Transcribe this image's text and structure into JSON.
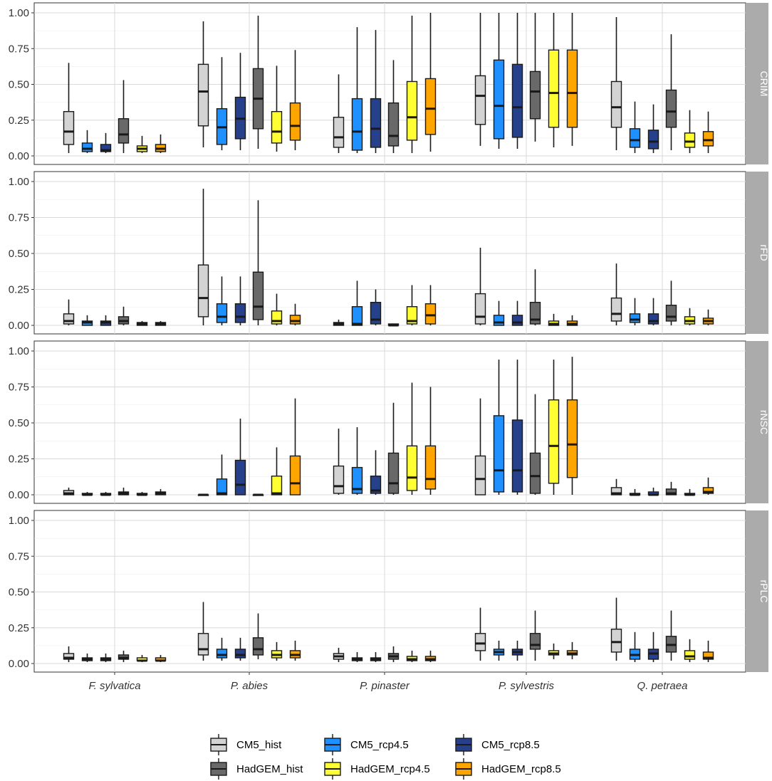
{
  "chart_data": {
    "type": "boxplot",
    "facets": [
      "CRIM",
      "rFD",
      "rNSC",
      "rPLC"
    ],
    "categories": [
      "F. sylvatica",
      "P. abies",
      "P. pinaster",
      "P. sylvestris",
      "Q. petraea"
    ],
    "ylim": [
      0,
      1
    ],
    "yticks": [
      "0.00",
      "0.25",
      "0.50",
      "0.75",
      "1.00"
    ],
    "series": [
      {
        "name": "CM5_hist",
        "color": "#d3d3d3"
      },
      {
        "name": "CM5_rcp4.5",
        "color": "#1e90ff"
      },
      {
        "name": "CM5_rcp8.5",
        "color": "#27408b"
      },
      {
        "name": "HadGEM_hist",
        "color": "#696969"
      },
      {
        "name": "HadGEM_rcp4.5",
        "color": "#ffff33"
      },
      {
        "name": "HadGEM_rcp8.5",
        "color": "#ffa500"
      }
    ],
    "legend_position": "bottom",
    "data": {
      "CRIM": [
        [
          [
            0.02,
            0.08,
            0.17,
            0.31,
            0.65
          ],
          [
            0.02,
            0.03,
            0.05,
            0.09,
            0.18
          ],
          [
            0.02,
            0.03,
            0.04,
            0.08,
            0.16
          ],
          [
            0.02,
            0.09,
            0.15,
            0.26,
            0.53
          ],
          [
            0.02,
            0.03,
            0.05,
            0.07,
            0.14
          ],
          [
            0.02,
            0.03,
            0.05,
            0.08,
            0.15
          ]
        ],
        [
          [
            0.06,
            0.21,
            0.45,
            0.64,
            0.94
          ],
          [
            0.04,
            0.08,
            0.2,
            0.33,
            0.69
          ],
          [
            0.04,
            0.12,
            0.26,
            0.41,
            0.72
          ],
          [
            0.05,
            0.19,
            0.4,
            0.61,
            0.98
          ],
          [
            0.03,
            0.09,
            0.17,
            0.31,
            0.63
          ],
          [
            0.04,
            0.11,
            0.21,
            0.37,
            0.74
          ]
        ],
        [
          [
            0.02,
            0.06,
            0.13,
            0.27,
            0.57
          ],
          [
            0.02,
            0.04,
            0.17,
            0.4,
            0.9
          ],
          [
            0.02,
            0.06,
            0.19,
            0.4,
            0.88
          ],
          [
            0.02,
            0.07,
            0.14,
            0.37,
            0.67
          ],
          [
            0.02,
            0.11,
            0.27,
            0.52,
            0.98
          ],
          [
            0.03,
            0.15,
            0.33,
            0.54,
            1.0
          ]
        ],
        [
          [
            0.07,
            0.22,
            0.42,
            0.56,
            1.0
          ],
          [
            0.05,
            0.12,
            0.35,
            0.67,
            1.0
          ],
          [
            0.05,
            0.13,
            0.34,
            0.64,
            1.0
          ],
          [
            0.1,
            0.26,
            0.45,
            0.59,
            1.0
          ],
          [
            0.06,
            0.2,
            0.44,
            0.74,
            1.0
          ],
          [
            0.07,
            0.2,
            0.44,
            0.74,
            1.0
          ]
        ],
        [
          [
            0.04,
            0.2,
            0.34,
            0.52,
            0.97
          ],
          [
            0.02,
            0.06,
            0.11,
            0.19,
            0.38
          ],
          [
            0.02,
            0.05,
            0.1,
            0.18,
            0.36
          ],
          [
            0.04,
            0.2,
            0.31,
            0.46,
            0.85
          ],
          [
            0.02,
            0.06,
            0.1,
            0.16,
            0.32
          ],
          [
            0.02,
            0.07,
            0.11,
            0.17,
            0.31
          ]
        ]
      ],
      "rFD": [
        [
          [
            0.0,
            0.01,
            0.03,
            0.08,
            0.18
          ],
          [
            0.0,
            0.0,
            0.02,
            0.03,
            0.07
          ],
          [
            0.0,
            0.0,
            0.02,
            0.03,
            0.07
          ],
          [
            0.0,
            0.01,
            0.03,
            0.06,
            0.13
          ],
          [
            0.0,
            0.0,
            0.01,
            0.02,
            0.03
          ],
          [
            0.0,
            0.0,
            0.01,
            0.02,
            0.03
          ]
        ],
        [
          [
            0.0,
            0.06,
            0.19,
            0.42,
            0.95
          ],
          [
            0.0,
            0.02,
            0.06,
            0.15,
            0.34
          ],
          [
            0.0,
            0.02,
            0.06,
            0.15,
            0.34
          ],
          [
            0.0,
            0.04,
            0.13,
            0.37,
            0.87
          ],
          [
            0.0,
            0.01,
            0.03,
            0.1,
            0.22
          ],
          [
            0.0,
            0.01,
            0.03,
            0.07,
            0.15
          ]
        ],
        [
          [
            0.0,
            0.0,
            0.01,
            0.02,
            0.04
          ],
          [
            0.0,
            0.0,
            0.01,
            0.13,
            0.31
          ],
          [
            0.0,
            0.01,
            0.04,
            0.16,
            0.25
          ],
          [
            0.0,
            0.0,
            0.0,
            0.01,
            0.01
          ],
          [
            0.0,
            0.01,
            0.03,
            0.13,
            0.28
          ],
          [
            0.0,
            0.01,
            0.07,
            0.15,
            0.28
          ]
        ],
        [
          [
            0.0,
            0.01,
            0.06,
            0.22,
            0.54
          ],
          [
            0.0,
            0.0,
            0.02,
            0.07,
            0.17
          ],
          [
            0.0,
            0.0,
            0.02,
            0.07,
            0.17
          ],
          [
            0.0,
            0.01,
            0.04,
            0.16,
            0.39
          ],
          [
            0.0,
            0.0,
            0.01,
            0.03,
            0.08
          ],
          [
            0.0,
            0.0,
            0.01,
            0.03,
            0.07
          ]
        ],
        [
          [
            0.0,
            0.03,
            0.08,
            0.19,
            0.43
          ],
          [
            0.0,
            0.02,
            0.04,
            0.08,
            0.19
          ],
          [
            0.0,
            0.01,
            0.03,
            0.08,
            0.19
          ],
          [
            0.0,
            0.03,
            0.06,
            0.14,
            0.31
          ],
          [
            0.0,
            0.01,
            0.03,
            0.06,
            0.12
          ],
          [
            0.0,
            0.01,
            0.03,
            0.05,
            0.11
          ]
        ]
      ],
      "rNSC": [
        [
          [
            0.0,
            0.0,
            0.01,
            0.03,
            0.05
          ],
          [
            0.0,
            0.0,
            0.0,
            0.01,
            0.02
          ],
          [
            0.0,
            0.0,
            0.0,
            0.01,
            0.02
          ],
          [
            0.0,
            0.0,
            0.01,
            0.02,
            0.05
          ],
          [
            0.0,
            0.0,
            0.0,
            0.01,
            0.02
          ],
          [
            0.0,
            0.0,
            0.01,
            0.02,
            0.04
          ]
        ],
        [
          [
            0.0,
            0.0,
            0.0,
            0.0,
            0.0
          ],
          [
            0.0,
            0.0,
            0.01,
            0.11,
            0.28
          ],
          [
            0.0,
            0.0,
            0.07,
            0.24,
            0.53
          ],
          [
            0.0,
            0.0,
            0.0,
            0.0,
            0.0
          ],
          [
            0.0,
            0.0,
            0.01,
            0.13,
            0.33
          ],
          [
            0.0,
            0.0,
            0.08,
            0.27,
            0.67
          ]
        ],
        [
          [
            0.0,
            0.01,
            0.06,
            0.2,
            0.46
          ],
          [
            0.0,
            0.01,
            0.04,
            0.19,
            0.47
          ],
          [
            0.0,
            0.01,
            0.03,
            0.13,
            0.31
          ],
          [
            0.0,
            0.01,
            0.08,
            0.29,
            0.64
          ],
          [
            0.0,
            0.03,
            0.12,
            0.34,
            0.78
          ],
          [
            0.0,
            0.04,
            0.11,
            0.34,
            0.75
          ]
        ],
        [
          [
            0.0,
            0.0,
            0.11,
            0.27,
            0.67
          ],
          [
            0.0,
            0.02,
            0.17,
            0.55,
            0.94
          ],
          [
            0.0,
            0.02,
            0.17,
            0.52,
            0.94
          ],
          [
            0.0,
            0.01,
            0.13,
            0.29,
            0.7
          ],
          [
            0.0,
            0.08,
            0.34,
            0.66,
            0.94
          ],
          [
            0.0,
            0.12,
            0.35,
            0.66,
            0.96
          ]
        ],
        [
          [
            0.0,
            0.0,
            0.01,
            0.05,
            0.11
          ],
          [
            0.0,
            0.0,
            0.0,
            0.01,
            0.04
          ],
          [
            0.0,
            0.0,
            0.0,
            0.02,
            0.05
          ],
          [
            0.0,
            0.0,
            0.01,
            0.04,
            0.09
          ],
          [
            0.0,
            0.0,
            0.0,
            0.01,
            0.04
          ],
          [
            0.0,
            0.01,
            0.02,
            0.05,
            0.12
          ]
        ]
      ],
      "rPLC": [
        [
          [
            0.01,
            0.03,
            0.04,
            0.07,
            0.12
          ],
          [
            0.01,
            0.02,
            0.03,
            0.04,
            0.07
          ],
          [
            0.01,
            0.02,
            0.03,
            0.04,
            0.07
          ],
          [
            0.01,
            0.03,
            0.04,
            0.06,
            0.09
          ],
          [
            0.01,
            0.02,
            0.02,
            0.04,
            0.06
          ],
          [
            0.01,
            0.02,
            0.02,
            0.04,
            0.06
          ]
        ],
        [
          [
            0.02,
            0.06,
            0.1,
            0.21,
            0.43
          ],
          [
            0.02,
            0.04,
            0.06,
            0.1,
            0.18
          ],
          [
            0.02,
            0.04,
            0.06,
            0.1,
            0.18
          ],
          [
            0.03,
            0.06,
            0.1,
            0.18,
            0.35
          ],
          [
            0.02,
            0.04,
            0.06,
            0.09,
            0.15
          ],
          [
            0.02,
            0.04,
            0.06,
            0.09,
            0.16
          ]
        ],
        [
          [
            0.01,
            0.03,
            0.05,
            0.07,
            0.11
          ],
          [
            0.01,
            0.02,
            0.03,
            0.04,
            0.08
          ],
          [
            0.01,
            0.02,
            0.03,
            0.04,
            0.08
          ],
          [
            0.01,
            0.03,
            0.05,
            0.07,
            0.12
          ],
          [
            0.01,
            0.02,
            0.03,
            0.05,
            0.09
          ],
          [
            0.01,
            0.02,
            0.03,
            0.05,
            0.09
          ]
        ],
        [
          [
            0.02,
            0.09,
            0.14,
            0.21,
            0.39
          ],
          [
            0.02,
            0.06,
            0.08,
            0.1,
            0.16
          ],
          [
            0.02,
            0.06,
            0.08,
            0.1,
            0.16
          ],
          [
            0.02,
            0.1,
            0.13,
            0.21,
            0.37
          ],
          [
            0.03,
            0.06,
            0.07,
            0.09,
            0.14
          ],
          [
            0.03,
            0.06,
            0.07,
            0.09,
            0.15
          ]
        ],
        [
          [
            0.02,
            0.08,
            0.15,
            0.24,
            0.46
          ],
          [
            0.01,
            0.03,
            0.06,
            0.1,
            0.22
          ],
          [
            0.01,
            0.03,
            0.07,
            0.1,
            0.22
          ],
          [
            0.02,
            0.08,
            0.13,
            0.19,
            0.37
          ],
          [
            0.01,
            0.03,
            0.05,
            0.09,
            0.17
          ],
          [
            0.01,
            0.03,
            0.04,
            0.08,
            0.16
          ]
        ]
      ]
    }
  }
}
